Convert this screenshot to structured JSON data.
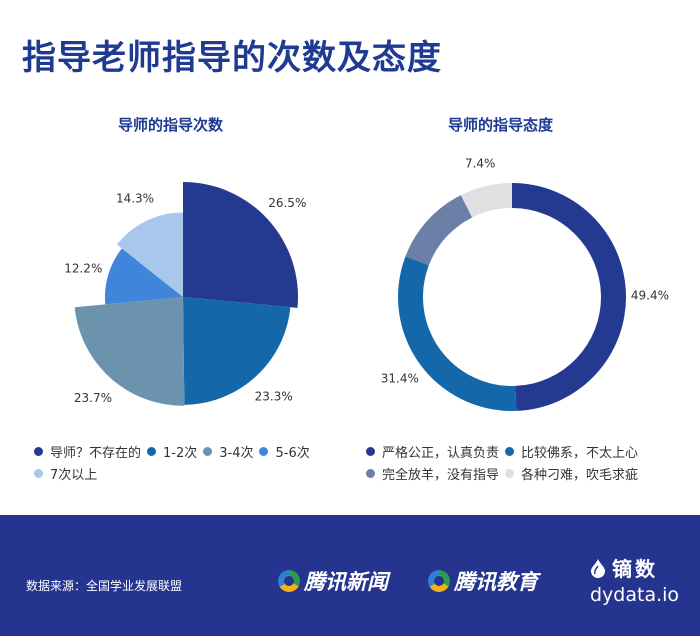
{
  "title": "指导老师指导的次数及态度",
  "charts": [
    {
      "type": "pie",
      "title": "导师的指导次数",
      "variant": "nightingale-rose",
      "slices": [
        {
          "label": "导师？不存在的",
          "value": 26.5,
          "display": "26.5%",
          "color": "#243a91"
        },
        {
          "label": "1-2次",
          "value": 23.3,
          "display": "23.3%",
          "color": "#1467a8"
        },
        {
          "label": "3-4次",
          "value": 23.7,
          "display": "23.7%",
          "color": "#6b93ad"
        },
        {
          "label": "5-6次",
          "value": 12.2,
          "display": "12.2%",
          "color": "#3f86db"
        },
        {
          "label": "7次以上",
          "value": 14.3,
          "display": "14.3%",
          "color": "#a9c7ea"
        }
      ]
    },
    {
      "type": "donut",
      "title": "导师的指导态度",
      "slices": [
        {
          "label": "严格公正，认真负责",
          "value": 49.4,
          "display": "49.4%",
          "color": "#243a91"
        },
        {
          "label": "比较佛系，不太上心",
          "value": 31.4,
          "display": "31.4%",
          "color": "#1467a8"
        },
        {
          "label": "完全放羊，没有指导",
          "value": 11.8,
          "display": "",
          "color": "#6c7fa6"
        },
        {
          "label": "各种刁难，吹毛求疵",
          "value": 7.4,
          "display": "7.4%",
          "color": "#e0e0e3"
        }
      ]
    }
  ],
  "footer": {
    "source": "数据来源：全国学业发展联盟",
    "logo1": "腾讯新闻",
    "logo2": "腾讯教育",
    "brand": "镝数",
    "brand_url": "dydata.io"
  }
}
